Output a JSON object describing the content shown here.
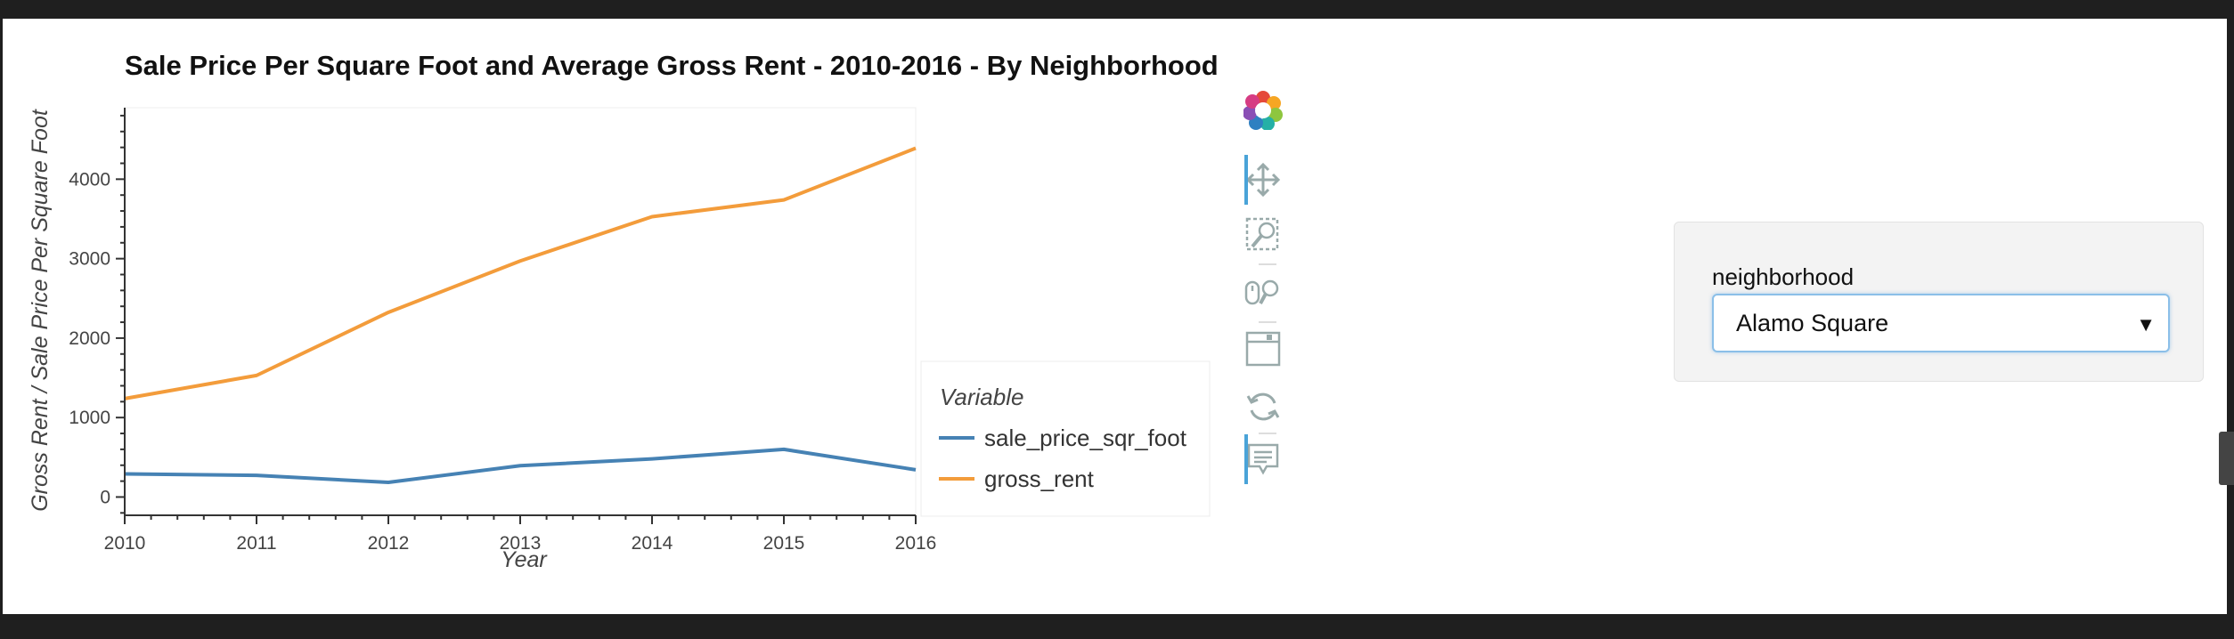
{
  "chart_data": {
    "type": "line",
    "title": "Sale Price Per Square Foot and Average Gross Rent - 2010-2016 - By Neighborhood",
    "xlabel": "Year",
    "ylabel": "Gross Rent / Sale Price Per Square Foot",
    "x": [
      2010,
      2011,
      2012,
      2013,
      2014,
      2015,
      2016
    ],
    "x_ticks": [
      "2010",
      "2011",
      "2012",
      "2013",
      "2014",
      "2015",
      "2016"
    ],
    "y_ticks": [
      "0",
      "1000",
      "2000",
      "3000",
      "4000"
    ],
    "xlim": [
      2010,
      2016
    ],
    "ylim": [
      -230,
      4900
    ],
    "grid": false,
    "legend": {
      "title": "Variable",
      "placement": "right"
    },
    "series": [
      {
        "name": "sale_price_sqr_foot",
        "color": "#4682b4",
        "values": [
          291,
          272,
          184,
          394,
          480,
          600,
          343
        ]
      },
      {
        "name": "gross_rent",
        "color": "#f39c3b",
        "values": [
          1239,
          1530,
          2324,
          2971,
          3528,
          3739,
          4390
        ]
      }
    ]
  },
  "toolbar": {
    "tools": [
      {
        "name": "bokeh-logo-icon"
      },
      {
        "name": "pan-icon"
      },
      {
        "name": "box-zoom-icon"
      },
      {
        "name": "wheel-zoom-icon"
      },
      {
        "name": "save-icon"
      },
      {
        "name": "reset-icon"
      },
      {
        "name": "hover-icon"
      }
    ]
  },
  "widget": {
    "label": "neighborhood",
    "selected": "Alamo Square"
  }
}
